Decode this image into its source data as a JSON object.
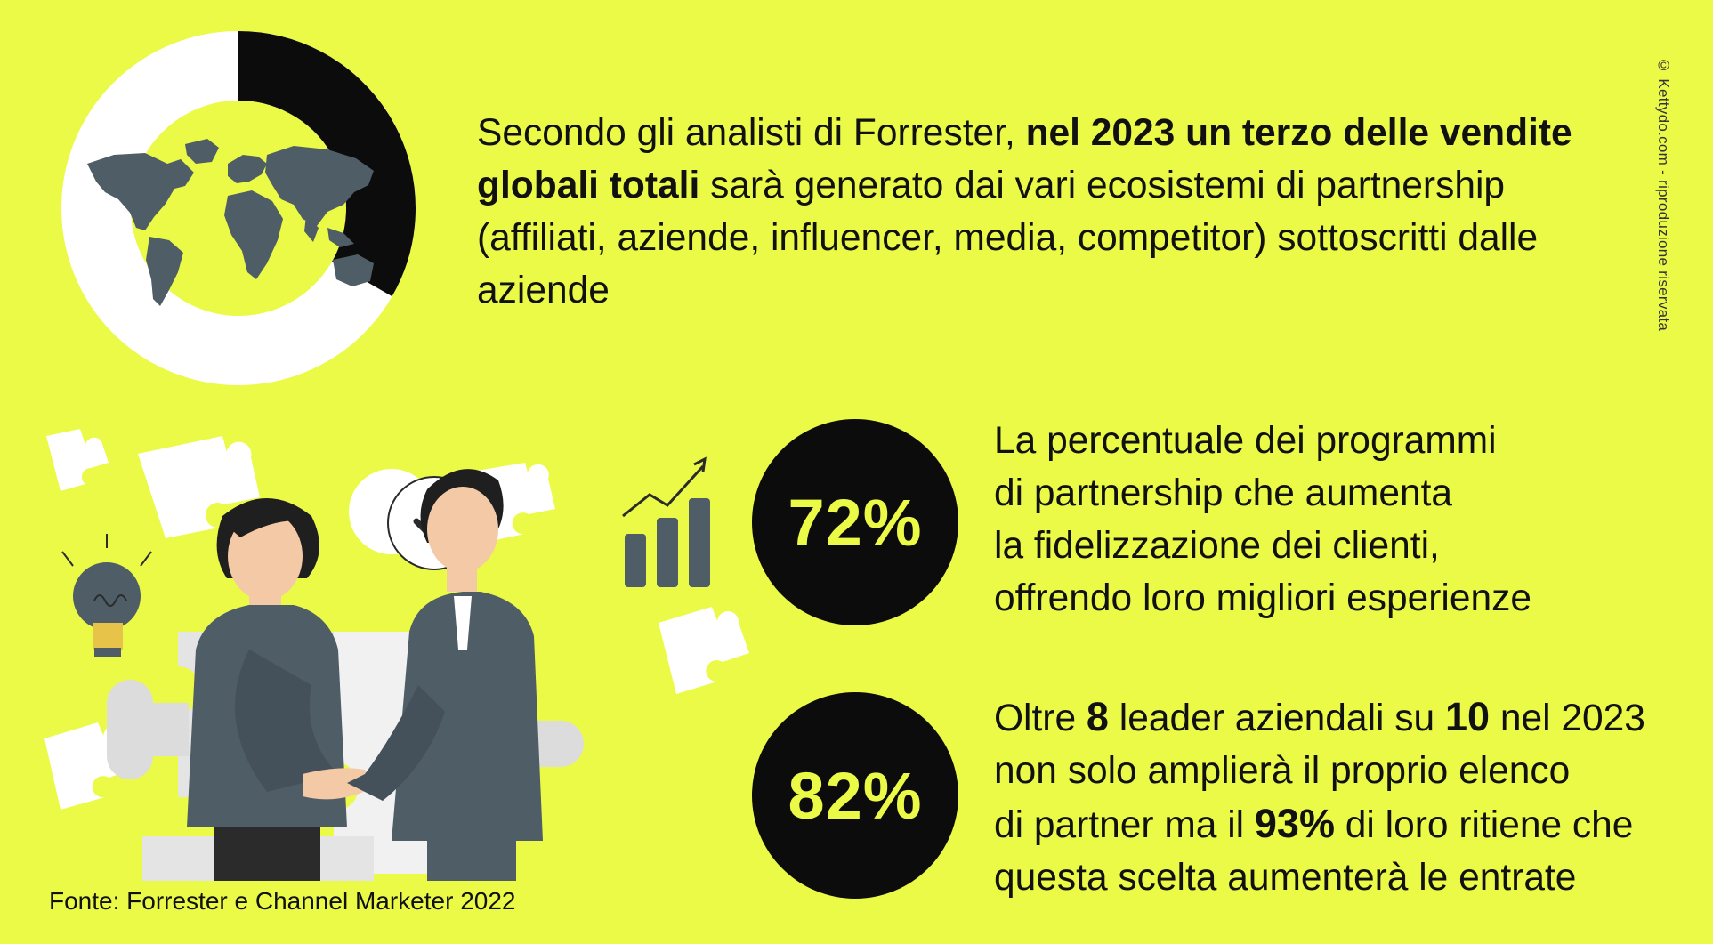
{
  "intro": {
    "part1": "Secondo gli analisti di Forrester, ",
    "bold": "nel 2023 un terzo delle vendite globali totali",
    "part2": " sarà generato dai vari ecosistemi di partnership (affiliati, aziende, influencer, media, competitor) sottoscritti dalle aziende"
  },
  "donut": {
    "highlighted_fraction": 0.333,
    "color_highlight": "#0c0c0c",
    "color_rest": "#ffffff"
  },
  "stats": [
    {
      "value": "72%",
      "line1": "La percentuale dei programmi",
      "line2": "di partnership che aumenta",
      "line3": "la fidelizzazione dei clienti,",
      "line4": "offrendo loro migliori esperienze"
    },
    {
      "value": "82%",
      "l1_a": "Oltre ",
      "l1_b": "8",
      "l1_c": " leader aziendali su ",
      "l1_d": "10",
      "l1_e": " nel 2023",
      "line2": "non solo amplierà il proprio elenco",
      "l3_a": "di partner ma il ",
      "l3_b": "93%",
      "l3_c": " di loro ritiene che",
      "line4": "questa scelta aumenterà le entrate"
    }
  ],
  "source": "Fonte: Forrester e Channel Marketer 2022",
  "copyright": "© Kettydo.com - riproduzione riservata",
  "icons": [
    "world-map-icon",
    "check-icon",
    "growth-chart-icon",
    "lightbulb-icon",
    "puzzle-piece-icon"
  ],
  "colors": {
    "background": "#ebf947",
    "dark": "#0c0c0c",
    "slate": "#4f5d66"
  }
}
